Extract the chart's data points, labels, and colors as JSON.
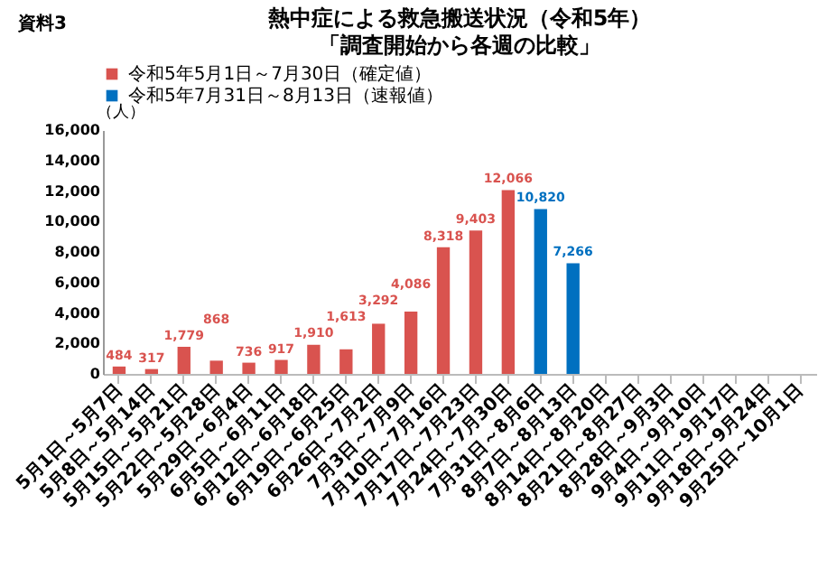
{
  "chart_data": {
    "type": "bar",
    "title": "熱中症による救急搬送状況（令和5年）",
    "subtitle": "「調査開始から各週の比較」",
    "ylabel": "（人）",
    "annotations": [
      "資料3"
    ],
    "categories": [
      "5月1日～5月7日",
      "5月8日～5月14日",
      "5月15日～5月21日",
      "5月22日～5月28日",
      "5月29日～6月4日",
      "6月5日～6月11日",
      "6月12日～6月18日",
      "6月19日～6月25日",
      "6月26日～7月2日",
      "7月3日～7月9日",
      "7月10日～7月16日",
      "7月17日～7月23日",
      "7月24日～7月30日",
      "7月31日～8月6日",
      "8月7日～8月13日",
      "8月14日～8月20日",
      "8月21日～8月27日",
      "8月28日～9月3日",
      "9月4日～9月10日",
      "9月11日～9月17日",
      "9月18日～9月24日",
      "9月25日～10月1日"
    ],
    "series": [
      {
        "name": "令和5年5月1日～7月30日（確定値）",
        "color": "#d9534f",
        "values": [
          484,
          317,
          1779,
          868,
          736,
          917,
          1910,
          1613,
          3292,
          4086,
          8318,
          9403,
          12066,
          null,
          null,
          null,
          null,
          null,
          null,
          null,
          null,
          null
        ],
        "value_labels": [
          "484",
          "317",
          "1,779",
          "868",
          "736",
          "917",
          "1,910",
          "1,613",
          "3,292",
          "4,086",
          "8,318",
          "9,403",
          "12,066",
          null,
          null,
          null,
          null,
          null,
          null,
          null,
          null,
          null
        ]
      },
      {
        "name": "令和5年7月31日～8月13日（速報値）",
        "color": "#0070c0",
        "values": [
          null,
          null,
          null,
          null,
          null,
          null,
          null,
          null,
          null,
          null,
          null,
          null,
          null,
          10820,
          7266,
          null,
          null,
          null,
          null,
          null,
          null,
          null
        ],
        "value_labels": [
          null,
          null,
          null,
          null,
          null,
          null,
          null,
          null,
          null,
          null,
          null,
          null,
          null,
          "10,820",
          "7,266",
          null,
          null,
          null,
          null,
          null,
          null,
          null
        ]
      }
    ],
    "ylim": [
      0,
      16000
    ],
    "yticks": [
      0,
      {
        "value": 2000,
        "label": "2,000"
      },
      {
        "value": 4000,
        "label": "4,000"
      },
      {
        "value": 6000,
        "label": "6,000"
      },
      {
        "value": 8000,
        "label": "8,000"
      },
      {
        "value": 10000,
        "label": "10,000"
      },
      {
        "value": 12000,
        "label": "12,000"
      },
      {
        "value": 14000,
        "label": "14,000"
      },
      {
        "value": 16000,
        "label": "16,000"
      }
    ],
    "legend": "top",
    "grid": false
  }
}
